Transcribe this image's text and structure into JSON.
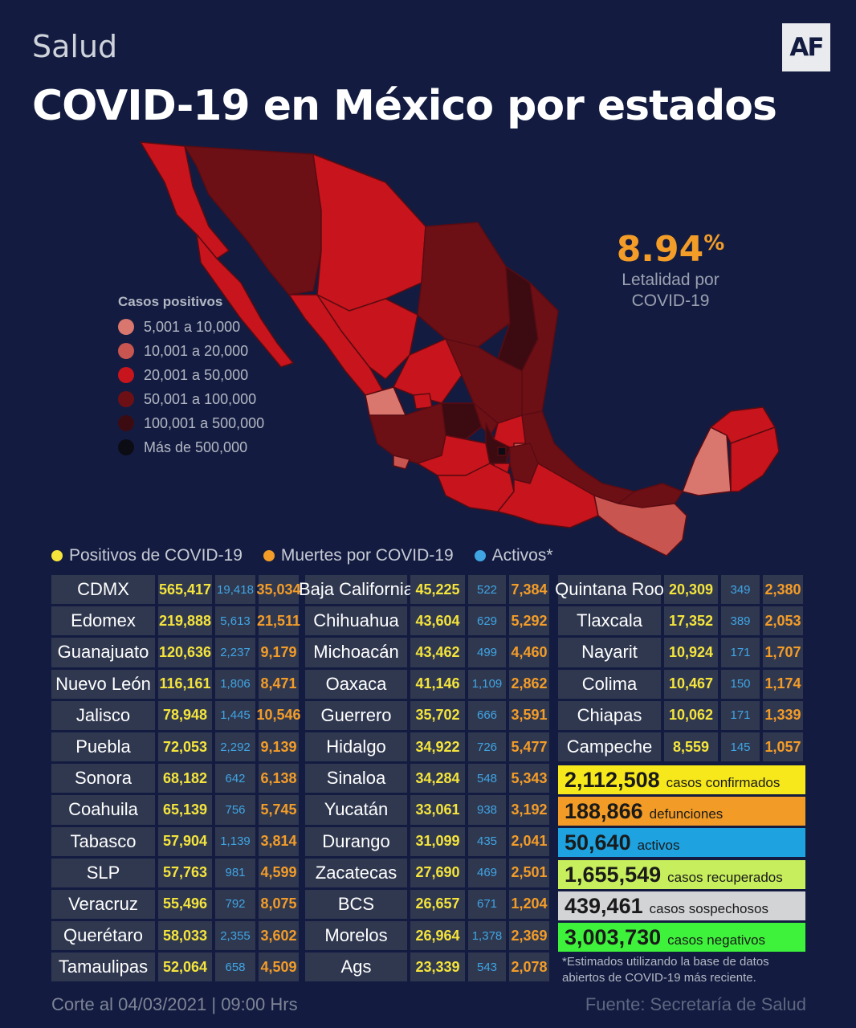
{
  "header": {
    "section": "Salud",
    "logo": "AF",
    "title": "COVID-19 en México por estados"
  },
  "letalidad": {
    "value": "8.94",
    "unit": "%",
    "label_line1": "Letalidad por",
    "label_line2": "COVID-19"
  },
  "legend": {
    "title": "Casos positivos",
    "items": [
      {
        "label": "5,001  a  10,000",
        "color": "#d9766e"
      },
      {
        "label": "10,001  a  20,000",
        "color": "#c8554f"
      },
      {
        "label": "20,001  a  50,000",
        "color": "#c8141c"
      },
      {
        "label": "50,001  a  100,000",
        "color": "#6d1016"
      },
      {
        "label": "100,001  a  500,000",
        "color": "#3c0b12"
      },
      {
        "label": "Más  de  500,000",
        "color": "#0b0c14"
      }
    ]
  },
  "keys": [
    {
      "label": "Positivos de COVID-19",
      "color": "#f4e43c"
    },
    {
      "label": "Muertes por COVID-19",
      "color": "#f39c28"
    },
    {
      "label": "Activos*",
      "color": "#3fa5e3"
    }
  ],
  "columns": [
    [
      {
        "name": "CDMX",
        "pos": "565,417",
        "act": "19,418",
        "def": "35,034"
      },
      {
        "name": "Edomex",
        "pos": "219,888",
        "act": "5,613",
        "def": "21,511"
      },
      {
        "name": "Guanajuato",
        "pos": "120,636",
        "act": "2,237",
        "def": "9,179"
      },
      {
        "name": "Nuevo León",
        "pos": "116,161",
        "act": "1,806",
        "def": "8,471"
      },
      {
        "name": "Jalisco",
        "pos": "78,948",
        "act": "1,445",
        "def": "10,546"
      },
      {
        "name": "Puebla",
        "pos": "72,053",
        "act": "2,292",
        "def": "9,139"
      },
      {
        "name": "Sonora",
        "pos": "68,182",
        "act": "642",
        "def": "6,138"
      },
      {
        "name": "Coahuila",
        "pos": "65,139",
        "act": "756",
        "def": "5,745"
      },
      {
        "name": "Tabasco",
        "pos": "57,904",
        "act": "1,139",
        "def": "3,814"
      },
      {
        "name": "SLP",
        "pos": "57,763",
        "act": "981",
        "def": "4,599"
      },
      {
        "name": "Veracruz",
        "pos": "55,496",
        "act": "792",
        "def": "8,075"
      },
      {
        "name": "Querétaro",
        "pos": "58,033",
        "act": "2,355",
        "def": "3,602"
      },
      {
        "name": "Tamaulipas",
        "pos": "52,064",
        "act": "658",
        "def": "4,509"
      }
    ],
    [
      {
        "name": "Baja California",
        "pos": "45,225",
        "act": "522",
        "def": "7,384"
      },
      {
        "name": "Chihuahua",
        "pos": "43,604",
        "act": "629",
        "def": "5,292"
      },
      {
        "name": "Michoacán",
        "pos": "43,462",
        "act": "499",
        "def": "4,460"
      },
      {
        "name": "Oaxaca",
        "pos": "41,146",
        "act": "1,109",
        "def": "2,862"
      },
      {
        "name": "Guerrero",
        "pos": "35,702",
        "act": "666",
        "def": "3,591"
      },
      {
        "name": "Hidalgo",
        "pos": "34,922",
        "act": "726",
        "def": "5,477"
      },
      {
        "name": "Sinaloa",
        "pos": "34,284",
        "act": "548",
        "def": "5,343"
      },
      {
        "name": "Yucatán",
        "pos": "33,061",
        "act": "938",
        "def": "3,192"
      },
      {
        "name": "Durango",
        "pos": "31,099",
        "act": "435",
        "def": "2,041"
      },
      {
        "name": "Zacatecas",
        "pos": "27,690",
        "act": "469",
        "def": "2,501"
      },
      {
        "name": "BCS",
        "pos": "26,657",
        "act": "671",
        "def": "1,204"
      },
      {
        "name": "Morelos",
        "pos": "26,964",
        "act": "1,378",
        "def": "2,369"
      },
      {
        "name": "Ags",
        "pos": "23,339",
        "act": "543",
        "def": "2,078"
      }
    ],
    [
      {
        "name": "Quintana Roo",
        "pos": "20,309",
        "act": "349",
        "def": "2,380"
      },
      {
        "name": "Tlaxcala",
        "pos": "17,352",
        "act": "389",
        "def": "2,053"
      },
      {
        "name": "Nayarit",
        "pos": "10,924",
        "act": "171",
        "def": "1,707"
      },
      {
        "name": "Colima",
        "pos": "10,467",
        "act": "150",
        "def": "1,174"
      },
      {
        "name": "Chiapas",
        "pos": "10,062",
        "act": "171",
        "def": "1,339"
      },
      {
        "name": "Campeche",
        "pos": "8,559",
        "act": "145",
        "def": "1,057"
      }
    ]
  ],
  "totals": [
    {
      "value": "2,112,508",
      "label": "casos confirmados",
      "color": "#f6e81a"
    },
    {
      "value": "188,866",
      "label": "defunciones",
      "color": "#f29b26"
    },
    {
      "value": "50,640",
      "label": "activos",
      "color": "#1ea2e0"
    },
    {
      "value": "1,655,549",
      "label": "casos recuperados",
      "color": "#c7ee5c"
    },
    {
      "value": "439,461",
      "label": "casos sospechosos",
      "color": "#d3d4d6"
    },
    {
      "value": "3,003,730",
      "label": "casos negativos",
      "color": "#3ef23b"
    }
  ],
  "note": "*Estimados utilizando la base de datos abiertos de COVID-19 más reciente.",
  "footer": {
    "left": "Corte al 04/03/2021 | 09:00 Hrs",
    "right": "Fuente: Secretaría de Salud"
  }
}
